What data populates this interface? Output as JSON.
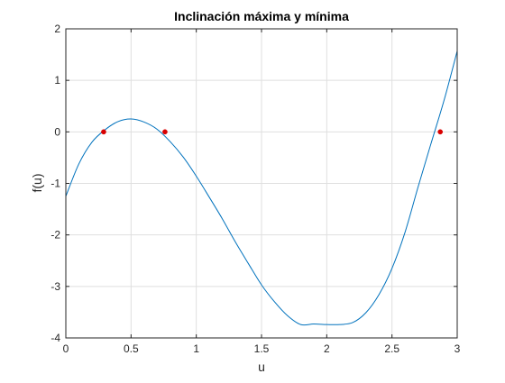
{
  "chart_data": {
    "type": "line",
    "title": "Inclinación máxima y mínima",
    "xlabel": "u",
    "ylabel": "f(u)",
    "xlim": [
      0,
      3
    ],
    "ylim": [
      -4,
      2
    ],
    "x_ticks": [
      0,
      0.5,
      1,
      1.5,
      2,
      2.5,
      3
    ],
    "x_tick_labels": [
      "0",
      "0.5",
      "1",
      "1.5",
      "2",
      "2.5",
      "3"
    ],
    "y_ticks": [
      -4,
      -3,
      -2,
      -1,
      0,
      1,
      2
    ],
    "y_tick_labels": [
      "-4",
      "-3",
      "-2",
      "-1",
      "0",
      "1",
      "2"
    ],
    "grid": true,
    "series": [
      {
        "color": "#0072bd",
        "x": [
          0,
          0.1,
          0.2,
          0.3,
          0.4,
          0.5,
          0.6,
          0.7,
          0.8,
          0.9,
          1.0,
          1.1,
          1.2,
          1.3,
          1.4,
          1.5,
          1.6,
          1.7,
          1.8,
          1.9,
          2.0,
          2.1,
          2.2,
          2.3,
          2.4,
          2.5,
          2.6,
          2.7,
          2.8,
          2.9,
          3.0
        ],
        "y": [
          -1.25,
          -0.62,
          -0.2,
          0.04,
          0.2,
          0.25,
          0.19,
          0.05,
          -0.19,
          -0.49,
          -0.86,
          -1.27,
          -1.69,
          -2.14,
          -2.56,
          -2.97,
          -3.3,
          -3.57,
          -3.74,
          -3.73,
          -3.74,
          -3.74,
          -3.7,
          -3.51,
          -3.16,
          -2.65,
          -1.95,
          -1.07,
          -0.22,
          0.62,
          1.57
        ]
      }
    ],
    "markers": {
      "color": "#d90000",
      "x": [
        0.29,
        0.76,
        2.87
      ],
      "y": [
        0,
        0,
        0
      ]
    }
  }
}
